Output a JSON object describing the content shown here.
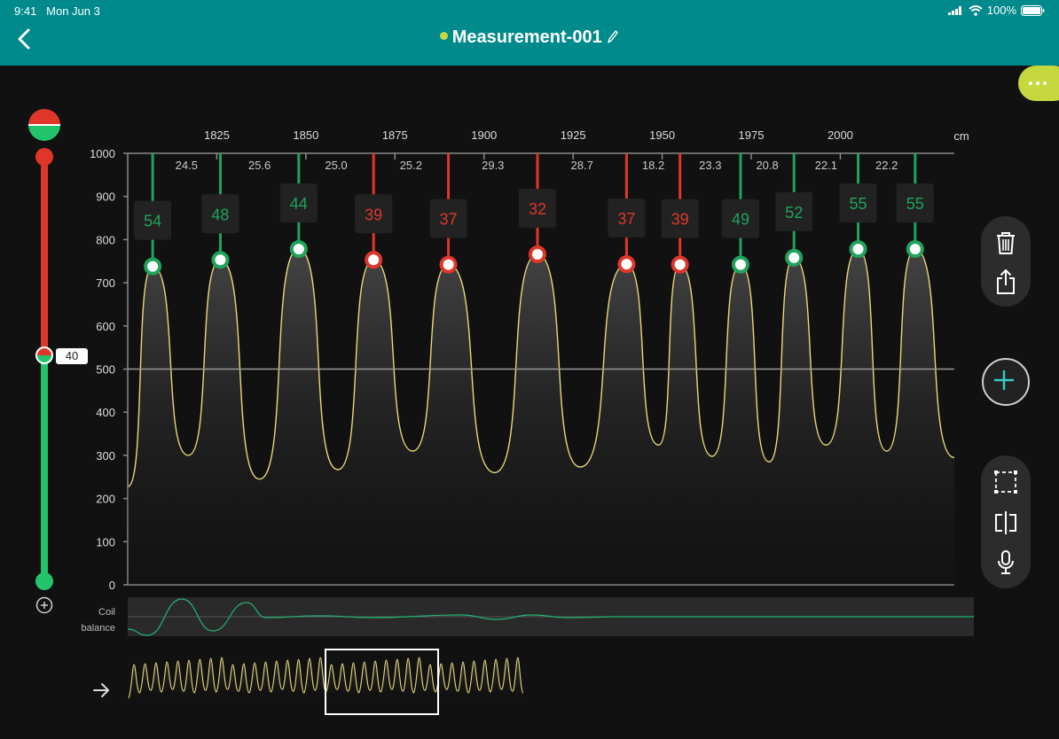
{
  "status_bar": {
    "time": "9:41",
    "date": "Mon Jun 3",
    "battery": "100%"
  },
  "header": {
    "title": "Measurement-001",
    "status_color": "#c7d94a",
    "accent": "#008a8c"
  },
  "icons": {
    "back": "chevron-left-icon",
    "edit": "pencil-icon",
    "more": "more-icon",
    "delete": "trash-icon",
    "share": "share-icon",
    "add": "plus-icon",
    "select": "selection-icon",
    "split": "split-icon",
    "mic": "microphone-icon",
    "arrow": "arrow-right-icon",
    "threshold_add": "plus-circle-icon"
  },
  "colors": {
    "good": "#1fa35c",
    "bad": "#e0362a",
    "signal": "#e8d97a",
    "coil": "#22b574"
  },
  "threshold": {
    "value": "40",
    "level": 0.49
  },
  "coil_label": {
    "line1": "Coil",
    "line2": "balance"
  },
  "chart_data": {
    "type": "line",
    "xlabel": "cm",
    "x_ticks": [
      "1825",
      "1850",
      "1875",
      "1900",
      "1925",
      "1950",
      "1975",
      "2000"
    ],
    "x_tick_values": [
      1825,
      1850,
      1875,
      1900,
      1925,
      1950,
      1975,
      2000
    ],
    "xlim": [
      1800,
      2032
    ],
    "ylim": [
      0,
      1000
    ],
    "y_ticks": [
      "0",
      "100",
      "200",
      "300",
      "400",
      "500",
      "600",
      "700",
      "800",
      "900",
      "1000"
    ],
    "y_tick_values": [
      0,
      100,
      200,
      300,
      400,
      500,
      600,
      700,
      800,
      900,
      1000
    ],
    "reference_line": 500,
    "markers": [
      {
        "x": 1807,
        "y": 738,
        "label": "54",
        "status": "good"
      },
      {
        "x": 1826,
        "y": 753,
        "label": "48",
        "status": "good"
      },
      {
        "x": 1848,
        "y": 778,
        "label": "44",
        "status": "good"
      },
      {
        "x": 1869,
        "y": 753,
        "label": "39",
        "status": "bad"
      },
      {
        "x": 1890,
        "y": 742,
        "label": "37",
        "status": "bad"
      },
      {
        "x": 1915,
        "y": 766,
        "label": "32",
        "status": "bad"
      },
      {
        "x": 1940,
        "y": 743,
        "label": "37",
        "status": "bad"
      },
      {
        "x": 1955,
        "y": 742,
        "label": "39",
        "status": "bad"
      },
      {
        "x": 1972,
        "y": 742,
        "label": "49",
        "status": "good"
      },
      {
        "x": 1987,
        "y": 758,
        "label": "52",
        "status": "good"
      },
      {
        "x": 2005,
        "y": 778,
        "label": "55",
        "status": "good"
      },
      {
        "x": 2021,
        "y": 778,
        "label": "55",
        "status": "good"
      }
    ],
    "spacings": [
      "24.5",
      "25.6",
      "25.0",
      "25.2",
      "29.3",
      "28.7",
      "18.2",
      "23.3",
      "20.8",
      "22.1",
      "22.2"
    ],
    "troughs": [
      {
        "x": 1800,
        "y": 228
      },
      {
        "x": 1817,
        "y": 300
      },
      {
        "x": 1837,
        "y": 245
      },
      {
        "x": 1859,
        "y": 267
      },
      {
        "x": 1880,
        "y": 310
      },
      {
        "x": 1903,
        "y": 260
      },
      {
        "x": 1927,
        "y": 273
      },
      {
        "x": 1949,
        "y": 324
      },
      {
        "x": 1964,
        "y": 298
      },
      {
        "x": 1980,
        "y": 285
      },
      {
        "x": 1996,
        "y": 324
      },
      {
        "x": 2013,
        "y": 310
      },
      {
        "x": 2032,
        "y": 295
      }
    ]
  }
}
